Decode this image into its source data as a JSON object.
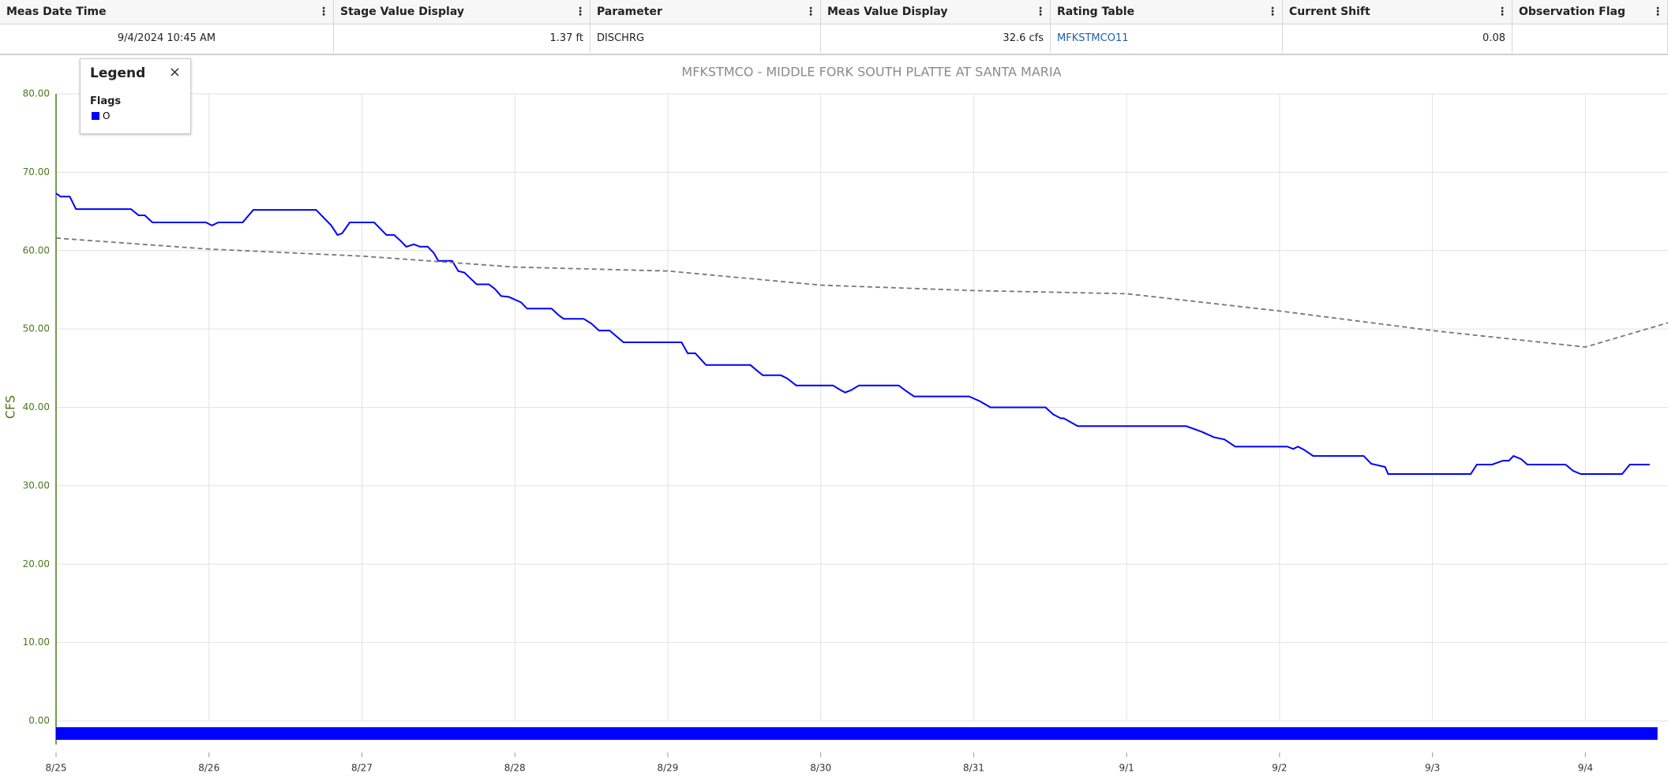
{
  "table": {
    "columns": [
      "Meas Date Time",
      "Stage Value Display",
      "Parameter",
      "Meas Value Display",
      "Rating Table",
      "Current Shift",
      "Observation Flag"
    ],
    "rows": [
      [
        "9/4/2024 10:45 AM",
        "1.37 ft",
        "DISCHRG",
        "32.6 cfs",
        "MFKSTMCO11",
        "0.08"
      ]
    ]
  },
  "chart_data": {
    "type": "line",
    "title": "MFKSTMCO - MIDDLE FORK SOUTH PLATTE AT SANTA MARIA",
    "y_label": "CFS",
    "xlim": [
      0,
      10.54
    ],
    "xticks": [
      {
        "value": 0,
        "label": "8/25"
      },
      {
        "value": 1,
        "label": "8/26"
      },
      {
        "value": 2,
        "label": "8/27"
      },
      {
        "value": 3,
        "label": "8/28"
      },
      {
        "value": 4,
        "label": "8/29"
      },
      {
        "value": 5,
        "label": "8/30"
      },
      {
        "value": 6,
        "label": "8/31"
      },
      {
        "value": 7,
        "label": "9/1"
      },
      {
        "value": 8,
        "label": "9/2"
      },
      {
        "value": 9,
        "label": "9/3"
      },
      {
        "value": 10,
        "label": "9/4"
      }
    ],
    "ylim": [
      0,
      80
    ],
    "yticks": [
      {
        "value": 0,
        "label": "0.00"
      },
      {
        "value": 10,
        "label": "10.00"
      },
      {
        "value": 20,
        "label": "20.00"
      },
      {
        "value": 30,
        "label": "30.00"
      },
      {
        "value": 40,
        "label": "40.00"
      },
      {
        "value": 50,
        "label": "50.00"
      },
      {
        "value": 60,
        "label": "60.00"
      },
      {
        "value": 70,
        "label": "70.00"
      },
      {
        "value": 80,
        "label": "80.00"
      }
    ],
    "grid": true,
    "series": [
      {
        "color": "#0000ff",
        "dash": false,
        "x": [
          0,
          0.03,
          0.09,
          0.13,
          0.49,
          0.54,
          0.58,
          0.63,
          0.98,
          1.02,
          1.06,
          1.22,
          1.29,
          1.7,
          1.76,
          1.8,
          1.84,
          1.87,
          1.92,
          2.08,
          2.16,
          2.21,
          2.25,
          2.29,
          2.34,
          2.38,
          2.43,
          2.47,
          2.5,
          2.59,
          2.63,
          2.67,
          2.75,
          2.83,
          2.87,
          2.91,
          2.96,
          3.04,
          3.08,
          3.24,
          3.29,
          3.32,
          3.45,
          3.5,
          3.55,
          3.62,
          3.71,
          4.09,
          4.13,
          4.18,
          4.25,
          4.54,
          4.62,
          4.74,
          4.78,
          4.84,
          5.08,
          5.13,
          5.16,
          5.2,
          5.25,
          5.51,
          5.55,
          5.61,
          5.97,
          6.04,
          6.11,
          6.47,
          6.52,
          6.57,
          6.59,
          6.68,
          7.39,
          7.49,
          7.57,
          7.64,
          7.71,
          8.05,
          8.09,
          8.12,
          8.16,
          8.22,
          8.55,
          8.6,
          8.69,
          8.71,
          9.25,
          9.29,
          9.39,
          9.46,
          9.5,
          9.53,
          9.58,
          9.62,
          9.87,
          9.92,
          9.97,
          10.24,
          10.29,
          10.42
        ],
        "values": [
          67.3,
          66.9,
          66.9,
          65.3,
          65.3,
          64.5,
          64.5,
          63.6,
          63.6,
          63.2,
          63.6,
          63.6,
          65.2,
          65.2,
          64.0,
          63.2,
          62.0,
          62.2,
          63.6,
          63.6,
          62.0,
          62.0,
          61.3,
          60.5,
          60.8,
          60.5,
          60.5,
          59.7,
          58.7,
          58.7,
          57.4,
          57.2,
          55.7,
          55.7,
          55.1,
          54.2,
          54.1,
          53.4,
          52.6,
          52.6,
          51.7,
          51.3,
          51.3,
          50.7,
          49.8,
          49.8,
          48.3,
          48.3,
          46.9,
          46.9,
          45.4,
          45.4,
          44.1,
          44.1,
          43.7,
          42.8,
          42.8,
          42.2,
          41.9,
          42.2,
          42.8,
          42.8,
          42.2,
          41.4,
          41.4,
          40.8,
          40.0,
          40.0,
          39.1,
          38.6,
          38.6,
          37.6,
          37.6,
          36.9,
          36.2,
          35.9,
          35.0,
          35.0,
          34.7,
          35.0,
          34.6,
          33.8,
          33.8,
          32.8,
          32.4,
          31.5,
          31.5,
          32.7,
          32.7,
          33.2,
          33.2,
          33.8,
          33.4,
          32.7,
          32.7,
          31.9,
          31.5,
          31.5,
          32.7,
          32.7
        ]
      },
      {
        "color": "#777777",
        "dash": true,
        "x": [
          0,
          1,
          2,
          3,
          4,
          5,
          6,
          7,
          8,
          9,
          10,
          10.54
        ],
        "values": [
          61.6,
          60.2,
          59.3,
          57.9,
          57.4,
          55.6,
          54.9,
          54.5,
          52.3,
          49.8,
          47.7,
          50.8
        ]
      }
    ],
    "legend": {
      "title": "Legend",
      "heading": "Flags",
      "items": [
        {
          "label": "O",
          "color": "#0000ff"
        }
      ]
    }
  }
}
